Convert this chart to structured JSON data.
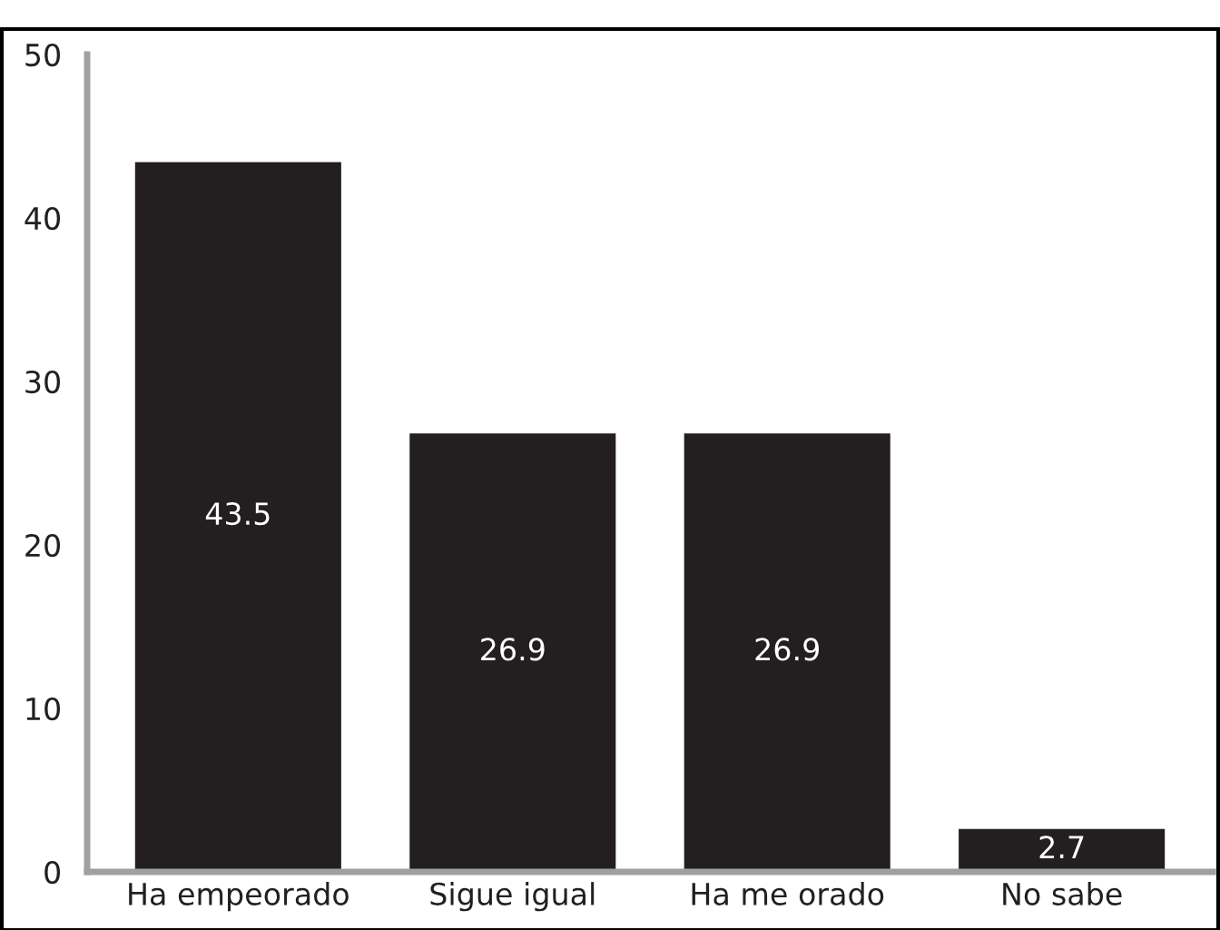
{
  "chart_data": {
    "type": "bar",
    "categories": [
      "Ha empeorado",
      "Sigue igual",
      "Ha me orado",
      "No sabe"
    ],
    "values": [
      43.5,
      26.9,
      26.9,
      2.7
    ],
    "color": "#231f20",
    "ylim": [
      0,
      50
    ],
    "yticks": [
      0,
      10,
      20,
      30,
      40,
      50
    ],
    "grid": false,
    "data_labels": true
  }
}
